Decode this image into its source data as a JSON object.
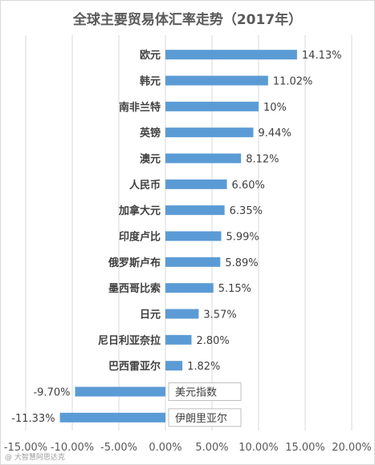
{
  "chart_data": {
    "type": "bar",
    "orientation": "horizontal",
    "title": "全球主要贸易体汇率走势（2017年）",
    "categories": [
      "欧元",
      "韩元",
      "南非兰特",
      "英镑",
      "澳元",
      "人民币",
      "加拿大元",
      "印度卢比",
      "俄罗斯卢布",
      "墨西哥比索",
      "日元",
      "尼日利亚奈拉",
      "巴西雷亚尔",
      "美元指数",
      "伊朗里亚尔"
    ],
    "values": [
      14.13,
      11.02,
      10,
      9.44,
      8.12,
      6.6,
      6.35,
      5.99,
      5.89,
      5.15,
      3.57,
      2.8,
      1.82,
      -9.7,
      -11.33
    ],
    "data_labels": [
      "14.13%",
      "11.02%",
      "10%",
      "9.44%",
      "8.12%",
      "6.60%",
      "6.35%",
      "5.99%",
      "5.89%",
      "5.15%",
      "3.57%",
      "2.80%",
      "1.82%",
      "-9.70%",
      "-11.33%"
    ],
    "xlim": [
      -15,
      20
    ],
    "x_ticks": [
      -15,
      -10,
      -5,
      0,
      5,
      10,
      15,
      20
    ],
    "x_tick_labels": [
      "-15.00%",
      "-10.00%",
      "-5.00%",
      "0.00%",
      "5.00%",
      "10.00%",
      "15.00%",
      "20.00%"
    ],
    "grid": "vertical",
    "legend": "none",
    "bar_color": "#5b9bd5"
  },
  "watermark": "@ 大智慧阿思达克"
}
